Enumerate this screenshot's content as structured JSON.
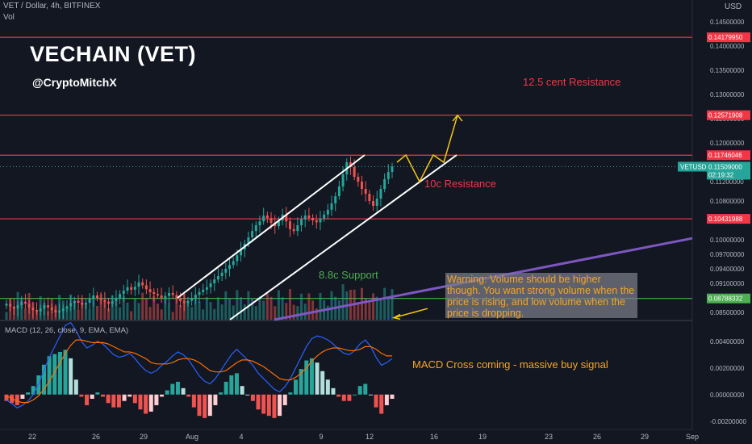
{
  "header": {
    "symbol_line": "VET / Dollar, 4h, BITFINEX",
    "vol_label": "Vol",
    "currency": "USD"
  },
  "annotations": {
    "title": "VECHAIN (VET)",
    "handle": "@CryptoMitchX",
    "resistance_125": "12.5 cent Resistance",
    "resistance_10": "10c Resistance",
    "support_88": "8.8c Support",
    "warning": "Warning: Volume should be higher though. You want strong volume when the price is rising, and low volume when the price is dropping.",
    "macd_note": "MACD Cross coming - massive buy signal"
  },
  "macd_header": "MACD (12, 26, close, 9, EMA, EMA)",
  "colors": {
    "background": "#131722",
    "up": "#26a69a",
    "down": "#ef5350",
    "level_line": "#f23645",
    "support_line": "#4caf50",
    "channel": "#ffffff",
    "trendline": "#7e57c2",
    "projection": "#f5c518",
    "macd_line": "#2962ff",
    "signal_line": "#ff6d00",
    "annotation_red": "#f23645",
    "annotation_green": "#4caf50",
    "annotation_orange": "#f5a623"
  },
  "price_axis": {
    "ticks": [
      "0.14500000",
      "0.14000000",
      "0.13500000",
      "0.13000000",
      "0.12500000",
      "0.12000000",
      "0.11500000",
      "0.11200000",
      "0.10800000",
      "0.10400000",
      "0.10000000",
      "0.09700000",
      "0.09400000",
      "0.09100000",
      "0.08800000",
      "0.08500000"
    ],
    "levels": [
      {
        "value": "0.14179950",
        "kind": "resistance"
      },
      {
        "value": "0.12571908",
        "kind": "resistance"
      },
      {
        "value": "0.11746046",
        "kind": "resistance"
      },
      {
        "value": "0.10431988",
        "kind": "resistance"
      },
      {
        "value": "0.08788332",
        "kind": "support"
      }
    ],
    "last_price": {
      "symbol": "VETUSD",
      "value": "0.11509000",
      "countdown": "02:19:32"
    }
  },
  "macd_axis": {
    "ticks": [
      "0.00400000",
      "0.00200000",
      "0.00000000",
      "-0.00200000"
    ]
  },
  "time_axis": {
    "labels": [
      "22",
      "26",
      "29",
      "Aug",
      "4",
      "9",
      "12",
      "16",
      "19",
      "23",
      "26",
      "29",
      "Sep"
    ]
  },
  "chart_data": {
    "type": "candlestick",
    "symbol": "VET / Dollar",
    "interval": "4h",
    "exchange": "BITFINEX",
    "price_range": [
      0.0835,
      0.1475
    ],
    "horizontal_levels": [
      0.1417995,
      0.12571908,
      0.11746046,
      0.10431988,
      0.08788332
    ],
    "channel": {
      "upper": [
        [
          "Aug 1",
          0.088
        ],
        [
          "Aug 11",
          0.1175
        ]
      ],
      "lower": [
        [
          "Aug 3",
          0.0835
        ],
        [
          "Aug 15",
          0.1175
        ]
      ]
    },
    "trendline": [
      [
        "Aug 6",
        0.0835
      ],
      [
        "Sep 1",
        0.1003
      ]
    ],
    "projection_path": [
      0.116,
      0.1175,
      0.112,
      0.1175,
      0.116,
      0.1257
    ],
    "closes": [
      0.0868,
      0.0862,
      0.0858,
      0.0865,
      0.0872,
      0.0868,
      0.086,
      0.0855,
      0.0852,
      0.0858,
      0.0865,
      0.086,
      0.0855,
      0.085,
      0.0853,
      0.0858,
      0.0863,
      0.0869,
      0.0874,
      0.087,
      0.0866,
      0.087,
      0.0878,
      0.0885,
      0.088,
      0.0876,
      0.0872,
      0.0868,
      0.0873,
      0.088,
      0.0888,
      0.0895,
      0.0902,
      0.0897,
      0.0903,
      0.0912,
      0.0906,
      0.0898,
      0.0892,
      0.0888,
      0.0885,
      0.088,
      0.0884,
      0.089,
      0.0886,
      0.0879,
      0.0873,
      0.0869,
      0.0874,
      0.088,
      0.0886,
      0.0892,
      0.0897,
      0.0902,
      0.091,
      0.0918,
      0.0925,
      0.0932,
      0.094,
      0.0948,
      0.0956,
      0.0968,
      0.098,
      0.0992,
      0.1005,
      0.1018,
      0.103,
      0.1038,
      0.105,
      0.1045,
      0.1035,
      0.1028,
      0.104,
      0.1052,
      0.1038,
      0.1022,
      0.1018,
      0.103,
      0.1042,
      0.105,
      0.1045,
      0.104,
      0.1036,
      0.1044,
      0.1052,
      0.1062,
      0.1075,
      0.109,
      0.111,
      0.1135,
      0.116,
      0.115,
      0.113,
      0.112,
      0.1105,
      0.1095,
      0.108,
      0.107,
      0.1085,
      0.1105,
      0.1125,
      0.114,
      0.1151
    ],
    "volume_scale": 1.0,
    "macd": {
      "ylim": [
        -0.0025,
        0.0055
      ],
      "macd_line": [
        -0.0004,
        -0.0007,
        -0.001,
        -0.0008,
        -0.0005,
        0.0,
        0.0008,
        0.0018,
        0.0028,
        0.0036,
        0.0044,
        0.0052,
        0.0054,
        0.0048,
        0.004,
        0.0035,
        0.0037,
        0.004,
        0.0038,
        0.0034,
        0.003,
        0.0028,
        0.0029,
        0.0031,
        0.0027,
        0.0022,
        0.0018,
        0.0016,
        0.0018,
        0.0022,
        0.0025,
        0.0029,
        0.0032,
        0.003,
        0.0026,
        0.002,
        0.0014,
        0.001,
        0.0008,
        0.0012,
        0.0018,
        0.0024,
        0.003,
        0.0034,
        0.003,
        0.0026,
        0.0022,
        0.0016,
        0.0012,
        0.0008,
        0.0004,
        0.0002,
        0.0006,
        0.0012,
        0.002,
        0.0028,
        0.0036,
        0.0042,
        0.0044,
        0.0043,
        0.0041,
        0.0038,
        0.0034,
        0.0031,
        0.003,
        0.0033,
        0.0038,
        0.0041,
        0.0036,
        0.0028,
        0.0022,
        0.0024,
        0.0027
      ],
      "signal_line": [
        -0.0001,
        -0.0003,
        -0.0005,
        -0.0006,
        -0.0006,
        -0.0004,
        -0.0001,
        0.0004,
        0.001,
        0.0017,
        0.0024,
        0.0031,
        0.0037,
        0.0041,
        0.0041,
        0.004,
        0.0039,
        0.0039,
        0.0039,
        0.0038,
        0.0036,
        0.0034,
        0.0032,
        0.0032,
        0.0031,
        0.0029,
        0.0027,
        0.0024,
        0.0023,
        0.0023,
        0.0023,
        0.0024,
        0.0026,
        0.0027,
        0.0027,
        0.0026,
        0.0024,
        0.0021,
        0.0018,
        0.0017,
        0.0017,
        0.0018,
        0.0021,
        0.0024,
        0.0026,
        0.0026,
        0.0025,
        0.0023,
        0.0021,
        0.0018,
        0.0015,
        0.0012,
        0.0011,
        0.0011,
        0.0013,
        0.0016,
        0.002,
        0.0025,
        0.0029,
        0.0032,
        0.0034,
        0.0035,
        0.0035,
        0.0034,
        0.0033,
        0.0033,
        0.0034,
        0.0036,
        0.0036,
        0.0034,
        0.0031,
        0.0029,
        0.0029
      ]
    }
  }
}
